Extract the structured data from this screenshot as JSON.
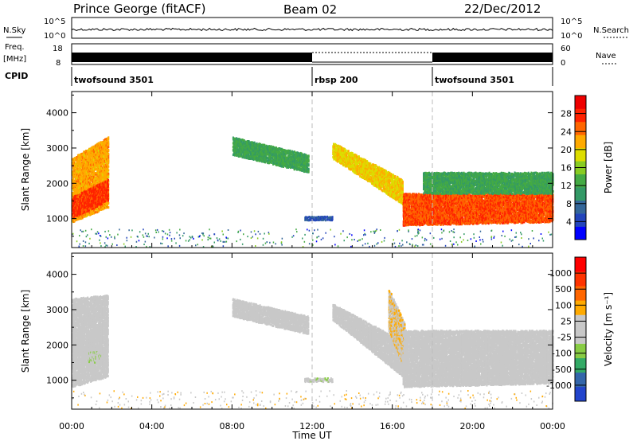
{
  "header": {
    "station": "Prince George (fitACF)",
    "beam": "Beam 02",
    "date": "22/Dec/2012"
  },
  "top_panels": {
    "sky": {
      "label": "N.Sky",
      "left_ticks": [
        "10^5",
        "10^0"
      ],
      "right_label": "N.Search",
      "right_ticks": [
        "10^5",
        "10^0"
      ]
    },
    "freq": {
      "label_line1": "Freq.",
      "label_line2": "[MHz]",
      "left_ticks": [
        "18",
        "8"
      ],
      "right_label": "Nave",
      "right_ticks": [
        "60",
        "0"
      ]
    },
    "cpid": {
      "label": "CPID",
      "segments": [
        {
          "name": "twofsound 3501",
          "start": 0,
          "end": 12
        },
        {
          "name": "rbsp 200",
          "start": 12,
          "end": 18
        },
        {
          "name": "twofsound 3501",
          "start": 18,
          "end": 24
        }
      ]
    }
  },
  "chart_data": [
    {
      "type": "heatmap",
      "title": "",
      "xlabel": "Time UT",
      "ylabel": "Slant Range [km]",
      "xlim": [
        0,
        24
      ],
      "ylim": [
        180,
        4600
      ],
      "x_ticks": [
        "00:00",
        "04:00",
        "08:00",
        "12:00",
        "16:00",
        "20:00",
        "00:00"
      ],
      "y_ticks": [
        1000,
        2000,
        3000,
        4000
      ],
      "colorbar": {
        "label": "Power [dB]",
        "range": [
          0,
          32
        ],
        "ticks": [
          4,
          8,
          12,
          16,
          20,
          24,
          28
        ],
        "colors": [
          "#0000ff",
          "#2244bb",
          "#336699",
          "#339966",
          "#44aa44",
          "#88cc22",
          "#dddd00",
          "#ffaa00",
          "#ff6600",
          "#ff2200",
          "#ee0000"
        ]
      },
      "echo_regions": [
        {
          "t0": 0.0,
          "t1": 1.8,
          "r_low0": 900,
          "r_low1": 1300,
          "r_high0": 2700,
          "r_high1": 3300,
          "level": 22
        },
        {
          "t0": 0.0,
          "t1": 1.8,
          "r_low0": 1000,
          "r_low1": 1500,
          "r_high0": 1600,
          "r_high1": 2100,
          "level": 27
        },
        {
          "t0": 8.0,
          "t1": 11.8,
          "r_low0": 2800,
          "r_low1": 2300,
          "r_high0": 3300,
          "r_high1": 2800,
          "level": 12
        },
        {
          "t0": 11.6,
          "t1": 13.0,
          "r_low0": 950,
          "r_low1": 950,
          "r_high0": 1050,
          "r_high1": 1050,
          "level": 6
        },
        {
          "t0": 13.0,
          "t1": 16.5,
          "r_low0": 2700,
          "r_low1": 1400,
          "r_high0": 3150,
          "r_high1": 2100,
          "level": 20
        },
        {
          "t0": 16.5,
          "t1": 24.0,
          "r_low0": 800,
          "r_low1": 900,
          "r_high0": 1700,
          "r_high1": 1700,
          "level": 26
        },
        {
          "t0": 17.5,
          "t1": 24.0,
          "r_low0": 1700,
          "r_low1": 1700,
          "r_high0": 2300,
          "r_high1": 2300,
          "level": 12
        }
      ]
    },
    {
      "type": "heatmap",
      "title": "",
      "xlabel": "Time UT",
      "ylabel": "Slant Range [km]",
      "xlim": [
        0,
        24
      ],
      "ylim": [
        180,
        4600
      ],
      "x_ticks": [
        "00:00",
        "04:00",
        "08:00",
        "12:00",
        "16:00",
        "20:00",
        "00:00"
      ],
      "y_ticks": [
        1000,
        2000,
        3000,
        4000
      ],
      "colorbar": {
        "label": "Velocity [m s⁻¹]",
        "range": [
          -1200,
          1200
        ],
        "ticks": [
          "1000",
          "500",
          "100",
          "25",
          "-25",
          "-100",
          "-500",
          "-1000"
        ],
        "colors": [
          "#2244cc",
          "#3366aa",
          "#33aa66",
          "#88cc44",
          "#c8c8c8",
          "#c8c8c8",
          "#ffaa00",
          "#ff6600",
          "#ff3300",
          "#ff0000"
        ]
      },
      "echo_regions": [
        {
          "t0": 0.0,
          "t1": 1.8,
          "r_low0": 800,
          "r_low1": 1100,
          "r_high0": 3300,
          "r_high1": 3400,
          "level": 0
        },
        {
          "t0": 0.8,
          "t1": 1.5,
          "r_low0": 1500,
          "r_low1": 1500,
          "r_high0": 1800,
          "r_high1": 1800,
          "level": -150
        },
        {
          "t0": 8.0,
          "t1": 11.8,
          "r_low0": 2800,
          "r_low1": 2300,
          "r_high0": 3300,
          "r_high1": 2800,
          "level": 0
        },
        {
          "t0": 11.6,
          "t1": 13.0,
          "r_low0": 950,
          "r_low1": 950,
          "r_high0": 1050,
          "r_high1": 1050,
          "level": -150
        },
        {
          "t0": 13.0,
          "t1": 16.5,
          "r_low0": 2700,
          "r_low1": 1100,
          "r_high0": 3150,
          "r_high1": 2100,
          "level": 0
        },
        {
          "t0": 15.8,
          "t1": 16.6,
          "r_low0": 2400,
          "r_low1": 1300,
          "r_high0": 3600,
          "r_high1": 2600,
          "level": 200
        },
        {
          "t0": 16.5,
          "t1": 24.0,
          "r_low0": 800,
          "r_low1": 900,
          "r_high0": 2400,
          "r_high1": 2400,
          "level": 0
        }
      ]
    }
  ]
}
